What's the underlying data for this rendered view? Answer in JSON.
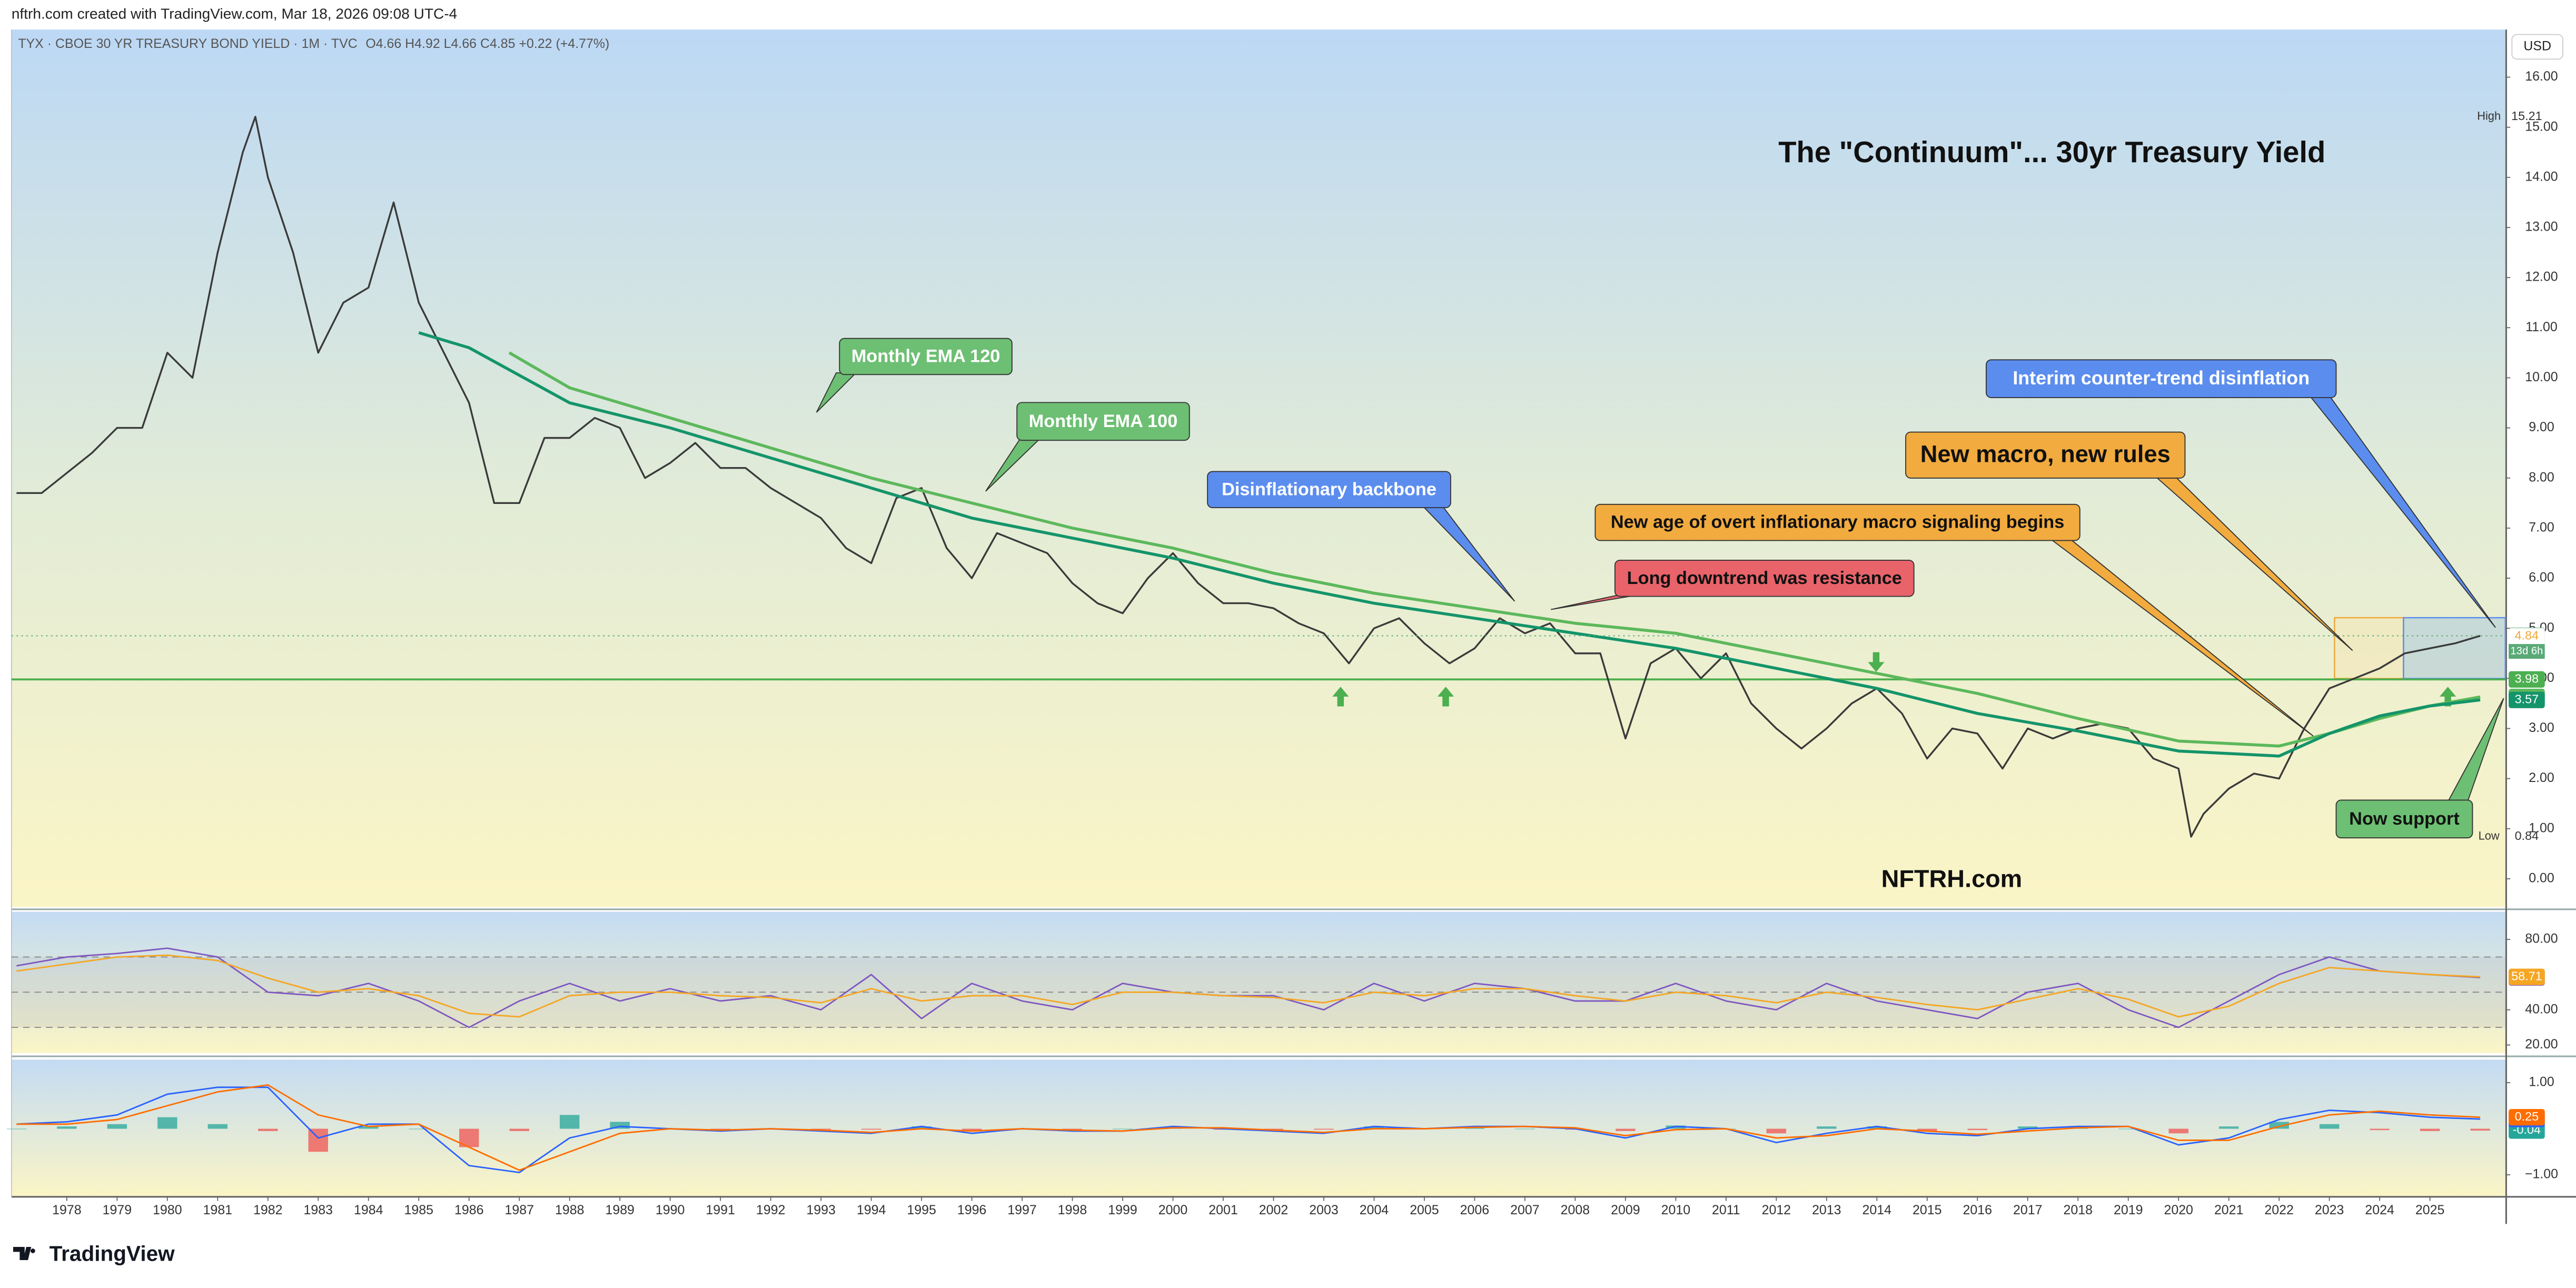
{
  "header": {
    "credit": "nftrh.com created with TradingView.com, Mar 18, 2026 09:08 UTC-4",
    "logo": "TradingView"
  },
  "chart_data": [
    {
      "type": "line",
      "title": "The \"Continuum\"... 30yr Treasury Yield",
      "legend": "TYX · CBOE 30 YR TREASURY BOND YIELD · 1M · TVC",
      "ohlc": "O4.66 H4.92 L4.66 C4.85 +0.22 (+4.77%)",
      "watermark": "NFTRH.com",
      "currency": "USD",
      "high_label": "High",
      "low_label": "Low",
      "countdown": "13d 6h",
      "ylim": [
        -0.56,
        16.95
      ],
      "yticks": [
        {
          "value": 0,
          "label": "0.00"
        },
        {
          "value": 1,
          "label": "1.00"
        },
        {
          "value": 2,
          "label": "2.00"
        },
        {
          "value": 3,
          "label": "3.00"
        },
        {
          "value": 4,
          "label": "4.00"
        },
        {
          "value": 5,
          "label": "5.00"
        },
        {
          "value": 6,
          "label": "6.00"
        },
        {
          "value": 7,
          "label": "7.00"
        },
        {
          "value": 8,
          "label": "8.00"
        },
        {
          "value": 9,
          "label": "9.00"
        },
        {
          "value": 10,
          "label": "10.00"
        },
        {
          "value": 11,
          "label": "11.00"
        },
        {
          "value": 12,
          "label": "12.00"
        },
        {
          "value": 13,
          "label": "13.00"
        },
        {
          "value": 14,
          "label": "14.00"
        },
        {
          "value": 15,
          "label": "15.00"
        },
        {
          "value": 16,
          "label": "16.00"
        }
      ],
      "hline": {
        "value": 3.98,
        "color": "#4caf50"
      },
      "price_labels": [
        {
          "value": 4.84,
          "color": "#f0a93d"
        }
      ],
      "series": [
        {
          "color": "#3a3a3a",
          "label_color": "#5aaa78",
          "x": [
            1977.0,
            1977.5,
            1978.0,
            1978.5,
            1979.0,
            1979.5,
            1980.0,
            1980.5,
            1981.0,
            1981.5,
            1981.75,
            1982.0,
            1982.5,
            1983.0,
            1983.5,
            1984.0,
            1984.5,
            1985.0,
            1985.5,
            1986.0,
            1986.5,
            1987.0,
            1987.5,
            1988.0,
            1988.5,
            1989.0,
            1989.5,
            1990.0,
            1990.5,
            1991.0,
            1991.5,
            1992.0,
            1992.5,
            1993.0,
            1993.5,
            1994.0,
            1994.5,
            1995.0,
            1995.5,
            1996.0,
            1996.5,
            1997.0,
            1997.5,
            1998.0,
            1998.5,
            1999.0,
            1999.5,
            2000.0,
            2000.5,
            2001.0,
            2001.5,
            2002.0,
            2002.5,
            2003.0,
            2003.5,
            2004.0,
            2004.5,
            2005.0,
            2005.5,
            2006.0,
            2006.5,
            2007.0,
            2007.5,
            2008.0,
            2008.5,
            2009.0,
            2009.5,
            2010.0,
            2010.5,
            2011.0,
            2011.5,
            2012.0,
            2012.5,
            2013.0,
            2013.5,
            2014.0,
            2014.5,
            2015.0,
            2015.5,
            2016.0,
            2016.5,
            2017.0,
            2017.5,
            2018.0,
            2018.5,
            2019.0,
            2019.5,
            2020.0,
            2020.25,
            2020.5,
            2021.0,
            2021.5,
            2022.0,
            2022.5,
            2023.0,
            2023.5,
            2024.0,
            2024.5,
            2025.0,
            2025.5,
            2026.0
          ],
          "values": [
            7.7,
            7.7,
            8.1,
            8.5,
            9.0,
            9.0,
            10.5,
            10.0,
            12.5,
            14.5,
            15.21,
            14.0,
            12.5,
            10.5,
            11.5,
            11.8,
            13.5,
            11.5,
            10.5,
            9.5,
            7.5,
            7.5,
            8.8,
            8.8,
            9.2,
            9.0,
            8.0,
            8.3,
            8.7,
            8.2,
            8.2,
            7.8,
            7.5,
            7.2,
            6.6,
            6.3,
            7.6,
            7.8,
            6.6,
            6.0,
            6.9,
            6.7,
            6.5,
            5.9,
            5.5,
            5.3,
            6.0,
            6.5,
            5.9,
            5.5,
            5.5,
            5.4,
            5.1,
            4.9,
            4.3,
            5.0,
            5.2,
            4.7,
            4.3,
            4.6,
            5.2,
            4.9,
            5.1,
            4.5,
            4.5,
            2.8,
            4.3,
            4.6,
            4.0,
            4.5,
            3.5,
            3.0,
            2.6,
            3.0,
            3.5,
            3.8,
            3.3,
            2.4,
            3.0,
            2.9,
            2.2,
            3.0,
            2.8,
            3.0,
            3.1,
            3.0,
            2.4,
            2.2,
            0.84,
            1.3,
            1.8,
            2.1,
            2.0,
            3.0,
            3.8,
            4.0,
            4.2,
            4.5,
            4.6,
            4.7,
            4.85
          ]
        },
        {
          "color": "#5cb85c",
          "label_color": "#5cb85c",
          "x": [
            1986.8,
            1988,
            1990,
            1992,
            1994,
            1996,
            1998,
            2000,
            2002,
            2004,
            2006,
            2008,
            2010,
            2012,
            2014,
            2016,
            2018,
            2020,
            2022,
            2023,
            2024,
            2025,
            2026
          ],
          "values": [
            10.5,
            9.8,
            9.2,
            8.6,
            8.0,
            7.5,
            7.0,
            6.6,
            6.1,
            5.7,
            5.4,
            5.1,
            4.9,
            4.5,
            4.1,
            3.7,
            3.2,
            2.75,
            2.65,
            2.9,
            3.2,
            3.45,
            3.63
          ]
        },
        {
          "color": "#14946a",
          "label_color": "#14946a",
          "x": [
            1985.0,
            1986,
            1988,
            1990,
            1992,
            1994,
            1996,
            1998,
            2000,
            2002,
            2004,
            2006,
            2008,
            2010,
            2012,
            2014,
            2016,
            2018,
            2020,
            2022,
            2023,
            2024,
            2025,
            2026
          ],
          "values": [
            10.9,
            10.6,
            9.5,
            9.0,
            8.4,
            7.8,
            7.2,
            6.8,
            6.4,
            5.9,
            5.5,
            5.2,
            4.9,
            4.6,
            4.2,
            3.8,
            3.3,
            2.95,
            2.55,
            2.45,
            2.9,
            3.25,
            3.45,
            3.57
          ]
        }
      ],
      "annotations": [
        {
          "text": "Monthly EMA 120",
          "color": "#6dbf73"
        },
        {
          "text": "Monthly EMA 100",
          "color": "#6dbf73"
        },
        {
          "text": "Disinflationary backbone",
          "color": "#5b8def"
        },
        {
          "text": "Long downtrend was resistance",
          "color": "#e8636a"
        },
        {
          "text": "New age of overt inflationary macro signaling begins",
          "color": "#f2ab3f"
        },
        {
          "text": "New macro, new rules",
          "color": "#f2ab3f"
        },
        {
          "text": "Interim counter-trend disinflation",
          "color": "#5b8def"
        },
        {
          "text": "Now support",
          "color": "#6dbf73"
        }
      ]
    },
    {
      "type": "line",
      "ylim": [
        15.4,
        95.7
      ],
      "yticks": [
        {
          "value": 20,
          "label": "20.00"
        },
        {
          "value": 40,
          "label": "40.00"
        },
        {
          "value": 80,
          "label": "80.00"
        }
      ],
      "bands": [
        30,
        50,
        70
      ],
      "x": [
        1977,
        1978,
        1979,
        1980,
        1981,
        1982,
        1983,
        1984,
        1985,
        1986,
        1987,
        1988,
        1989,
        1990,
        1991,
        1992,
        1993,
        1994,
        1995,
        1996,
        1997,
        1998,
        1999,
        2000,
        2001,
        2002,
        2003,
        2004,
        2005,
        2006,
        2007,
        2008,
        2009,
        2010,
        2011,
        2012,
        2013,
        2014,
        2015,
        2016,
        2017,
        2018,
        2019,
        2020,
        2021,
        2022,
        2023,
        2024,
        2025,
        2026
      ],
      "series": [
        {
          "color": "#7e57c2",
          "values": [
            65,
            70,
            72,
            75,
            70,
            50,
            48,
            55,
            45,
            30,
            45,
            55,
            45,
            52,
            45,
            48,
            40,
            60,
            35,
            55,
            45,
            40,
            55,
            50,
            48,
            48,
            40,
            55,
            45,
            55,
            52,
            45,
            45,
            55,
            45,
            40,
            55,
            45,
            40,
            35,
            50,
            55,
            40,
            30,
            45,
            60,
            70,
            62,
            60,
            58.36
          ]
        },
        {
          "color": "#f5a623",
          "values": [
            62,
            66,
            70,
            71,
            68,
            58,
            50,
            52,
            48,
            38,
            36,
            48,
            50,
            50,
            48,
            47,
            44,
            52,
            45,
            48,
            48,
            43,
            50,
            50,
            48,
            47,
            44,
            50,
            48,
            52,
            52,
            48,
            45,
            50,
            48,
            44,
            50,
            47,
            43,
            40,
            46,
            52,
            46,
            36,
            42,
            55,
            64,
            62,
            60,
            58.71
          ]
        }
      ]
    },
    {
      "type": "line",
      "ylim": [
        -1.46,
        1.5
      ],
      "yticks": [
        {
          "value": 1,
          "label": "1.00"
        },
        {
          "value": -1,
          "label": "−1.00"
        }
      ],
      "xlim": [
        1976.9,
        2026.5
      ],
      "xticks": [
        1978,
        1979,
        1980,
        1981,
        1982,
        1983,
        1984,
        1985,
        1986,
        1987,
        1988,
        1989,
        1990,
        1991,
        1992,
        1993,
        1994,
        1995,
        1996,
        1997,
        1998,
        1999,
        2000,
        2001,
        2002,
        2003,
        2004,
        2005,
        2006,
        2007,
        2008,
        2009,
        2010,
        2011,
        2012,
        2013,
        2014,
        2015,
        2016,
        2017,
        2018,
        2019,
        2020,
        2021,
        2022,
        2023,
        2024,
        2025
      ],
      "x": [
        1977,
        1978,
        1979,
        1980,
        1981,
        1982,
        1983,
        1984,
        1985,
        1986,
        1987,
        1988,
        1989,
        1990,
        1991,
        1992,
        1993,
        1994,
        1995,
        1996,
        1997,
        1998,
        1999,
        2000,
        2001,
        2002,
        2003,
        2004,
        2005,
        2006,
        2007,
        2008,
        2009,
        2010,
        2011,
        2012,
        2013,
        2014,
        2015,
        2016,
        2017,
        2018,
        2019,
        2020,
        2021,
        2022,
        2023,
        2024,
        2025,
        2026
      ],
      "series": [
        {
          "type": "bar",
          "color": "#26a69a",
          "negative_color": "#ef5350",
          "values": [
            0,
            0.05,
            0.1,
            0.25,
            0.1,
            -0.05,
            -0.5,
            0.05,
            0,
            -0.4,
            -0.05,
            0.3,
            0.15,
            0,
            -0.02,
            0,
            -0.02,
            -0.02,
            0.05,
            -0.05,
            0,
            -0.02,
            0,
            0.03,
            -0.02,
            -0.02,
            -0.02,
            0.05,
            0,
            0.02,
            0,
            -0.02,
            -0.05,
            0.07,
            0,
            -0.1,
            0.05,
            0.05,
            -0.05,
            -0.03,
            0.05,
            0.03,
            0,
            -0.1,
            0.05,
            0.15,
            0.1,
            -0.03,
            -0.05,
            -0.04
          ]
        },
        {
          "type": "line",
          "color": "#2962ff",
          "values": [
            0.1,
            0.15,
            0.3,
            0.75,
            0.9,
            0.9,
            -0.2,
            0.1,
            0.1,
            -0.8,
            -0.95,
            -0.2,
            0.05,
            0,
            -0.05,
            0,
            -0.05,
            -0.1,
            0.05,
            -0.1,
            0,
            -0.05,
            -0.05,
            0.05,
            0,
            -0.05,
            -0.1,
            0.05,
            0,
            0.05,
            0.05,
            0,
            -0.2,
            0.05,
            0,
            -0.3,
            -0.1,
            0.05,
            -0.1,
            -0.15,
            0,
            0.05,
            0.05,
            -0.35,
            -0.2,
            0.2,
            0.4,
            0.35,
            0.25,
            0.21
          ]
        },
        {
          "type": "line",
          "color": "#ff6d00",
          "values": [
            0.1,
            0.1,
            0.2,
            0.5,
            0.8,
            0.95,
            0.3,
            0.05,
            0.1,
            -0.4,
            -0.9,
            -0.5,
            -0.1,
            0,
            -0.03,
            0,
            -0.03,
            -0.08,
            0,
            -0.05,
            0,
            -0.03,
            -0.05,
            0.02,
            0.02,
            -0.03,
            -0.08,
            0,
            0,
            0.03,
            0.05,
            0.02,
            -0.15,
            -0.02,
            0,
            -0.2,
            -0.15,
            0,
            -0.05,
            -0.12,
            -0.05,
            0.02,
            0.05,
            -0.25,
            -0.25,
            0.05,
            0.3,
            0.38,
            0.3,
            0.25
          ]
        }
      ]
    }
  ]
}
